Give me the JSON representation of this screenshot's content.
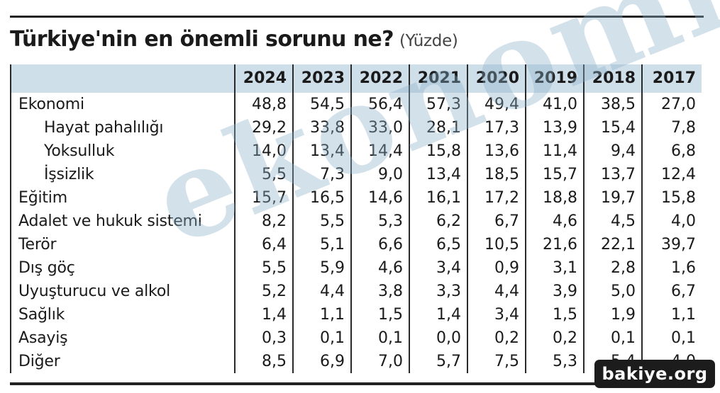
{
  "header": {
    "title": "Türkiye'nin en önemli sorunu ne?",
    "subtitle": "(Yüzde)"
  },
  "table": {
    "columns": [
      "2024",
      "2023",
      "2022",
      "2021",
      "2020",
      "2019",
      "2018",
      "2017"
    ],
    "rows": [
      {
        "label": "Ekonomi",
        "values": [
          "48,8",
          "54,5",
          "56,4",
          "57,3",
          "49,4",
          "41,0",
          "38,5",
          "27,0"
        ]
      },
      {
        "label": "Hayat pahalılığı",
        "values": [
          "29,2",
          "33,8",
          "33,0",
          "28,1",
          "17,3",
          "13,9",
          "15,4",
          "7,8"
        ]
      },
      {
        "label": "Yoksulluk",
        "values": [
          "14,0",
          "13,4",
          "14,4",
          "15,8",
          "13,6",
          "11,4",
          "9,4",
          "6,8"
        ]
      },
      {
        "label": "İşsizlik",
        "values": [
          "5,5",
          "7,3",
          "9,0",
          "13,4",
          "18,5",
          "15,7",
          "13,7",
          "12,4"
        ]
      },
      {
        "label": "Eğitim",
        "values": [
          "15,7",
          "16,5",
          "14,6",
          "16,1",
          "17,2",
          "18,8",
          "19,7",
          "15,8"
        ]
      },
      {
        "label": "Adalet ve hukuk sistemi",
        "values": [
          "8,2",
          "5,5",
          "5,3",
          "6,2",
          "6,7",
          "4,6",
          "4,5",
          "4,0"
        ]
      },
      {
        "label": "Terör",
        "values": [
          "6,4",
          "5,1",
          "6,6",
          "6,5",
          "10,5",
          "21,6",
          "22,1",
          "39,7"
        ]
      },
      {
        "label": "Dış göç",
        "values": [
          "5,5",
          "5,9",
          "4,6",
          "3,4",
          "0,9",
          "3,1",
          "2,8",
          "1,6"
        ]
      },
      {
        "label": "Uyuşturucu ve alkol",
        "values": [
          "5,2",
          "4,4",
          "3,8",
          "3,3",
          "4,4",
          "3,9",
          "5,0",
          "6,7"
        ]
      },
      {
        "label": "Sağlık",
        "values": [
          "1,4",
          "1,1",
          "1,5",
          "1,4",
          "3,4",
          "1,5",
          "1,9",
          "1,1"
        ]
      },
      {
        "label": "Asayiş",
        "values": [
          "0,3",
          "0,1",
          "0,1",
          "0,0",
          "0,2",
          "0,2",
          "0,1",
          "0,1"
        ]
      },
      {
        "label": "Diğer",
        "values": [
          "8,5",
          "6,9",
          "7,0",
          "5,7",
          "7,5",
          "5,3",
          "5,4",
          "4,0"
        ]
      }
    ]
  },
  "watermark": {
    "text": "ekonomi"
  },
  "badge": {
    "text": "bakiye.org"
  },
  "colors": {
    "header_band": "#cfdfea",
    "watermark": "#8cafc8",
    "rule": "#222222"
  }
}
